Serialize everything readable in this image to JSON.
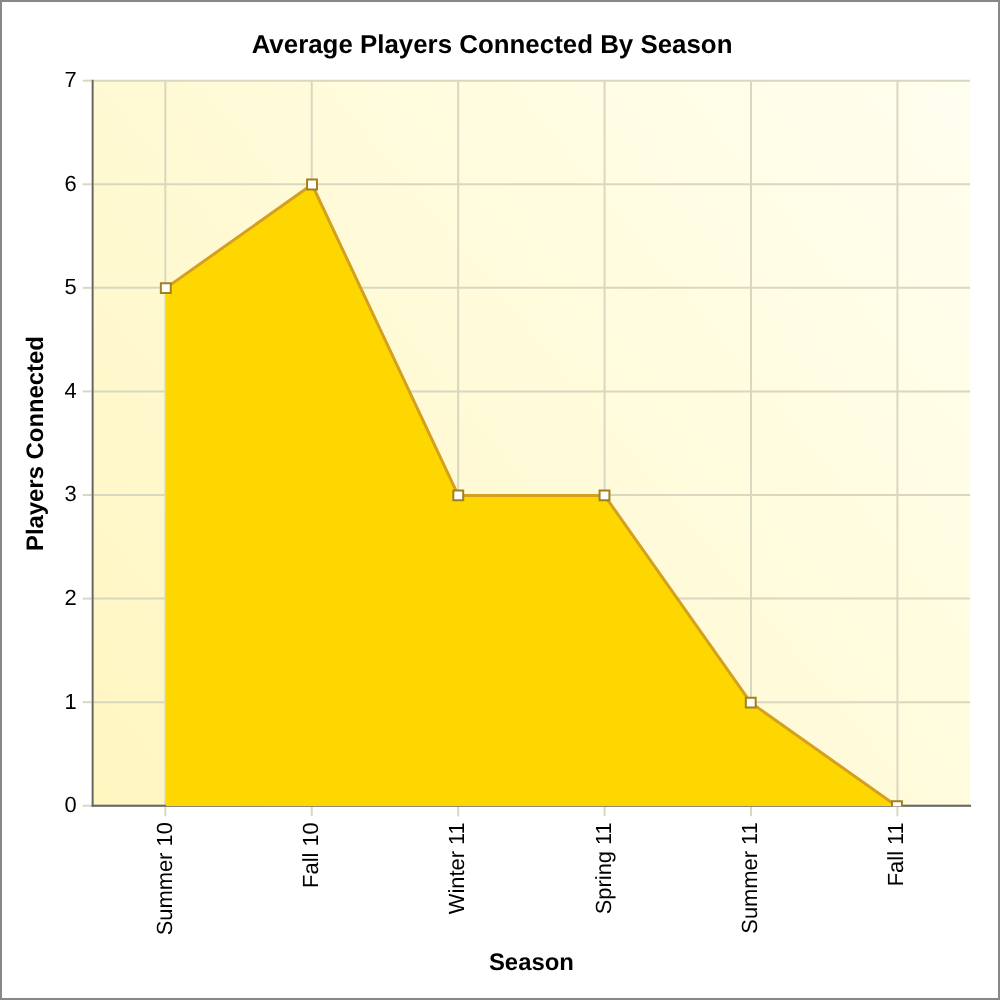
{
  "chart_data": {
    "type": "area",
    "title": "Average Players Connected By Season",
    "xlabel": "Season",
    "ylabel": "Players Connected",
    "categories": [
      "Summer 10",
      "Fall 10",
      "Winter 11",
      "Spring 11",
      "Summer 11",
      "Fall 11"
    ],
    "series": [
      {
        "color": "#ffd700",
        "values": [
          5,
          6,
          3,
          3,
          1,
          0
        ]
      }
    ],
    "ylim": [
      0,
      7
    ],
    "yticks": [
      0,
      1,
      2,
      3,
      4,
      5,
      6,
      7
    ],
    "grid": true,
    "marker": "square",
    "legend": false
  }
}
